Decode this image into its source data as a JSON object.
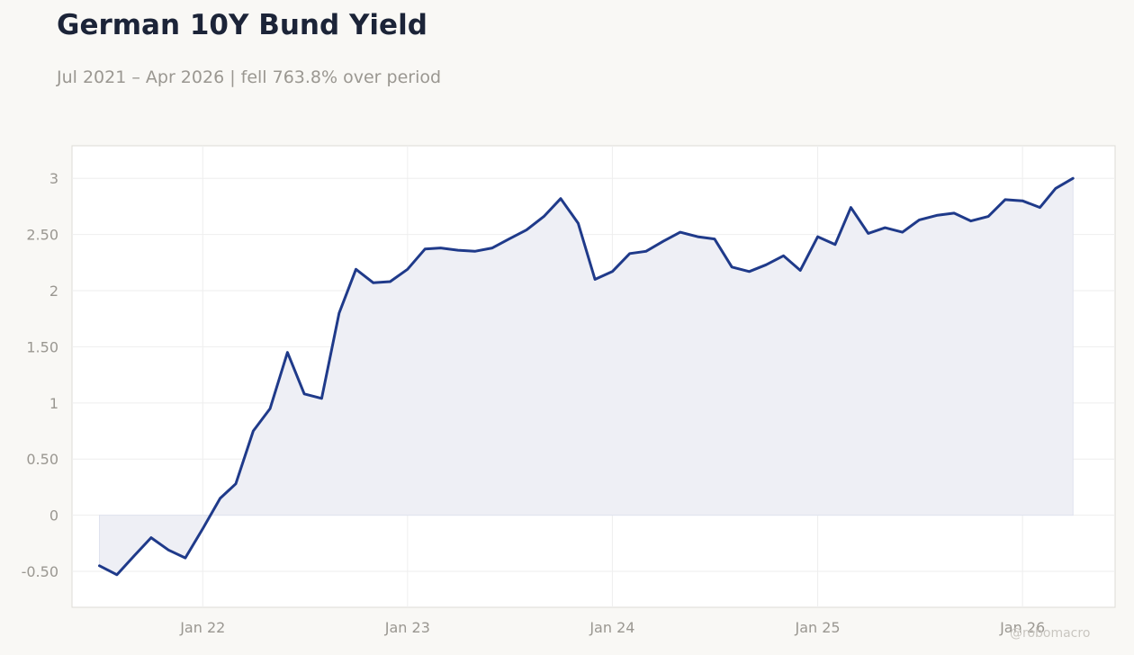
{
  "header": {
    "title": "German 10Y Bund Yield",
    "subtitle": "Jul 2021 – Apr 2026 | fell 763.8% over period"
  },
  "watermark": "@robomacro",
  "colors": {
    "line": "#1f3a8a",
    "fill": "#eeeff5",
    "background": "#f9f8f5",
    "plot_background": "#ffffff",
    "grid": "#eeeeee",
    "text_muted": "#9a9791"
  },
  "chart_data": {
    "type": "area",
    "title": "German 10Y Bund Yield",
    "subtitle": "Jul 2021 – Apr 2026 | fell 763.8% over period",
    "xlabel": "",
    "ylabel": "",
    "grid": true,
    "legend": "none",
    "xlim": [
      "2021-05-13",
      "2026-06-15"
    ],
    "ylim": [
      -0.82,
      3.29
    ],
    "x_ticks": [
      {
        "date": "2022-01-01",
        "label": "Jan 22"
      },
      {
        "date": "2023-01-01",
        "label": "Jan 23"
      },
      {
        "date": "2024-01-01",
        "label": "Jan 24"
      },
      {
        "date": "2025-01-01",
        "label": "Jan 25"
      },
      {
        "date": "2026-01-01",
        "label": "Jan 26"
      }
    ],
    "y_ticks": [
      {
        "value": -0.5,
        "label": "-0.50"
      },
      {
        "value": 0,
        "label": "0"
      },
      {
        "value": 0.5,
        "label": "0.50"
      },
      {
        "value": 1,
        "label": "1"
      },
      {
        "value": 1.5,
        "label": "1.50"
      },
      {
        "value": 2,
        "label": "2"
      },
      {
        "value": 2.5,
        "label": "2.50"
      },
      {
        "value": 3,
        "label": "3"
      }
    ],
    "series": [
      {
        "x": [
          "2021-07-01",
          "2021-08-01",
          "2021-09-01",
          "2021-10-01",
          "2021-11-01",
          "2021-12-01",
          "2022-01-01",
          "2022-02-01",
          "2022-03-01",
          "2022-04-01",
          "2022-05-01",
          "2022-06-01",
          "2022-07-01",
          "2022-08-01",
          "2022-09-01",
          "2022-10-01",
          "2022-11-01",
          "2022-12-01",
          "2023-01-01",
          "2023-02-01",
          "2023-03-01",
          "2023-04-01",
          "2023-05-01",
          "2023-06-01",
          "2023-07-01",
          "2023-08-01",
          "2023-09-01",
          "2023-10-01",
          "2023-11-01",
          "2023-12-01",
          "2024-01-01",
          "2024-02-01",
          "2024-03-01",
          "2024-04-01",
          "2024-05-01",
          "2024-06-01",
          "2024-07-01",
          "2024-08-01",
          "2024-09-01",
          "2024-10-01",
          "2024-11-01",
          "2024-12-01",
          "2025-01-01",
          "2025-02-01",
          "2025-03-01",
          "2025-04-01",
          "2025-05-01",
          "2025-06-01",
          "2025-07-01",
          "2025-08-01",
          "2025-09-01",
          "2025-10-01",
          "2025-11-01",
          "2025-12-01",
          "2026-01-01",
          "2026-02-01",
          "2026-03-01",
          "2026-04-01"
        ],
        "values": [
          -0.45,
          -0.53,
          -0.36,
          -0.2,
          -0.31,
          -0.38,
          -0.12,
          0.15,
          0.28,
          0.75,
          0.95,
          1.45,
          1.08,
          1.04,
          1.8,
          2.19,
          2.07,
          2.08,
          2.19,
          2.37,
          2.38,
          2.36,
          2.35,
          2.38,
          2.46,
          2.54,
          2.66,
          2.82,
          2.6,
          2.1,
          2.17,
          2.33,
          2.35,
          2.44,
          2.52,
          2.48,
          2.46,
          2.21,
          2.17,
          2.23,
          2.31,
          2.18,
          2.48,
          2.41,
          2.74,
          2.51,
          2.56,
          2.52,
          2.63,
          2.67,
          2.69,
          2.62,
          2.66,
          2.81,
          2.8,
          2.74,
          2.91,
          3.0
        ]
      }
    ]
  }
}
